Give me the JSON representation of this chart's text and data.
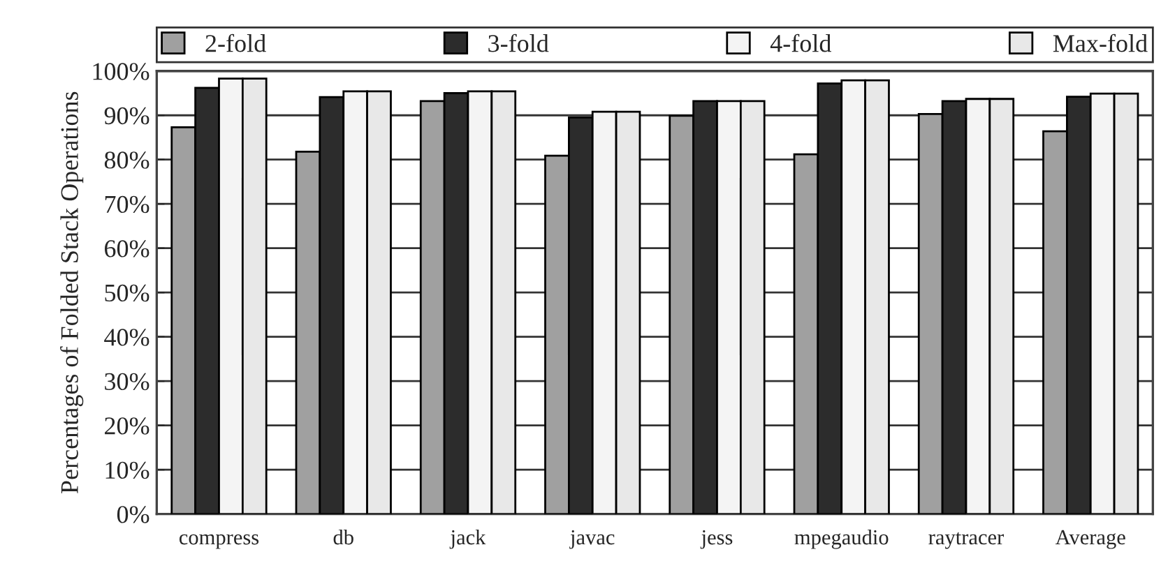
{
  "chart_data": {
    "type": "bar",
    "ylabel": "Percentages of Folded Stack Operations",
    "categories": [
      "compress",
      "db",
      "jack",
      "javac",
      "jess",
      "mpegaudio",
      "raytracer",
      "Average"
    ],
    "series": [
      {
        "name": "2-fold",
        "color": "#a0a0a0",
        "values": [
          87.3,
          81.8,
          93.2,
          80.9,
          89.9,
          81.2,
          90.3,
          86.4
        ]
      },
      {
        "name": "3-fold",
        "color": "#2c2c2c",
        "values": [
          96.2,
          94.1,
          95.0,
          89.5,
          93.2,
          97.2,
          93.2,
          94.2
        ]
      },
      {
        "name": "4-fold",
        "color": "#f4f4f4",
        "values": [
          98.3,
          95.4,
          95.4,
          90.8,
          93.2,
          97.9,
          93.7,
          94.9
        ]
      },
      {
        "name": "Max-fold",
        "color": "#e8e8e8",
        "values": [
          98.3,
          95.4,
          95.4,
          90.8,
          93.2,
          97.9,
          93.7,
          94.9
        ]
      }
    ],
    "ylim": [
      0,
      100
    ],
    "yticks": [
      {
        "value": 0,
        "label": "0%"
      },
      {
        "value": 10,
        "label": "10%"
      },
      {
        "value": 20,
        "label": "20%"
      },
      {
        "value": 30,
        "label": "30%"
      },
      {
        "value": 40,
        "label": "40%"
      },
      {
        "value": 50,
        "label": "50%"
      },
      {
        "value": 60,
        "label": "60%"
      },
      {
        "value": 70,
        "label": "70%"
      },
      {
        "value": 80,
        "label": "80%"
      },
      {
        "value": 90,
        "label": "90%"
      },
      {
        "value": 100,
        "label": "100%"
      }
    ],
    "grid": "y",
    "legend": "top"
  }
}
